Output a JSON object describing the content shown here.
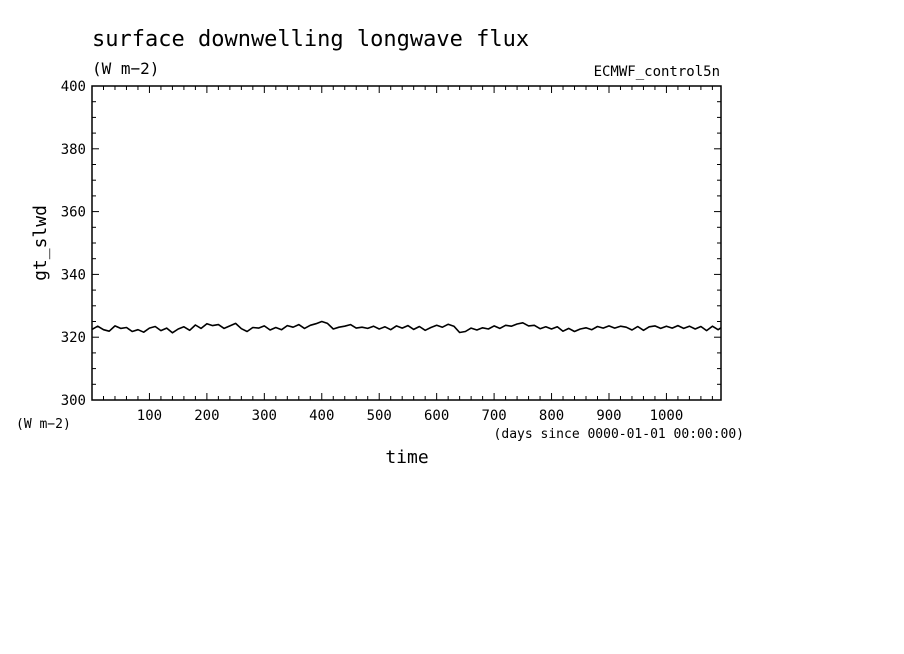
{
  "title": "surface downwelling longwave flux",
  "subtitle_units": "(W m−2)",
  "source_label": "ECMWF_control5n",
  "chart_data": {
    "type": "line",
    "xlabel": "time",
    "x_units": "(days since 0000-01-01 00:00:00)",
    "ylabel": "gt_slwd",
    "y_units": "(W m−2)",
    "xlim": [
      0,
      1095
    ],
    "ylim": [
      300,
      400
    ],
    "x_ticks": [
      100,
      200,
      300,
      400,
      500,
      600,
      700,
      800,
      900,
      1000
    ],
    "y_ticks": [
      300,
      320,
      340,
      360,
      380,
      400
    ],
    "grid": false,
    "line_color": "#000000",
    "series": [
      {
        "x": [
          0,
          10,
          20,
          30,
          40,
          50,
          60,
          70,
          80,
          90,
          100,
          110,
          120,
          130,
          140,
          150,
          160,
          170,
          180,
          190,
          200,
          210,
          220,
          230,
          240,
          250,
          260,
          270,
          280,
          290,
          300,
          310,
          320,
          330,
          340,
          350,
          360,
          370,
          380,
          390,
          400,
          410,
          420,
          430,
          440,
          450,
          460,
          470,
          480,
          490,
          500,
          510,
          520,
          530,
          540,
          550,
          560,
          570,
          580,
          590,
          600,
          610,
          620,
          630,
          640,
          650,
          660,
          670,
          680,
          690,
          700,
          710,
          720,
          730,
          740,
          750,
          760,
          770,
          780,
          790,
          800,
          810,
          820,
          830,
          840,
          850,
          860,
          870,
          880,
          890,
          900,
          910,
          920,
          930,
          940,
          950,
          960,
          970,
          980,
          990,
          1000,
          1010,
          1020,
          1030,
          1040,
          1050,
          1060,
          1070,
          1080,
          1090,
          1095
        ],
        "y": [
          322.5,
          323.5,
          322.4,
          321.9,
          323.6,
          322.8,
          323.1,
          321.8,
          322.4,
          321.6,
          322.9,
          323.4,
          322.1,
          322.9,
          321.4,
          322.6,
          323.3,
          322.2,
          323.9,
          322.8,
          324.3,
          323.7,
          324.0,
          322.8,
          323.6,
          324.4,
          322.7,
          321.8,
          323.1,
          322.9,
          323.6,
          322.3,
          323.1,
          322.4,
          323.7,
          323.2,
          324.0,
          322.8,
          323.8,
          324.3,
          325.0,
          324.4,
          322.6,
          323.2,
          323.5,
          324.0,
          322.9,
          323.2,
          322.8,
          323.5,
          322.6,
          323.3,
          322.4,
          323.6,
          322.9,
          323.7,
          322.5,
          323.4,
          322.2,
          323.1,
          323.8,
          323.2,
          324.1,
          323.5,
          321.5,
          321.8,
          322.9,
          322.3,
          323.0,
          322.6,
          323.6,
          322.8,
          323.8,
          323.5,
          324.2,
          324.6,
          323.6,
          323.8,
          322.7,
          323.3,
          322.6,
          323.3,
          321.9,
          322.8,
          321.8,
          322.6,
          323.0,
          322.4,
          323.4,
          322.9,
          323.6,
          322.9,
          323.5,
          323.2,
          322.3,
          323.4,
          322.2,
          323.3,
          323.6,
          322.8,
          323.5,
          322.9,
          323.7,
          322.8,
          323.5,
          322.6,
          323.4,
          322.1,
          323.5,
          322.4,
          323.0
        ]
      }
    ]
  }
}
